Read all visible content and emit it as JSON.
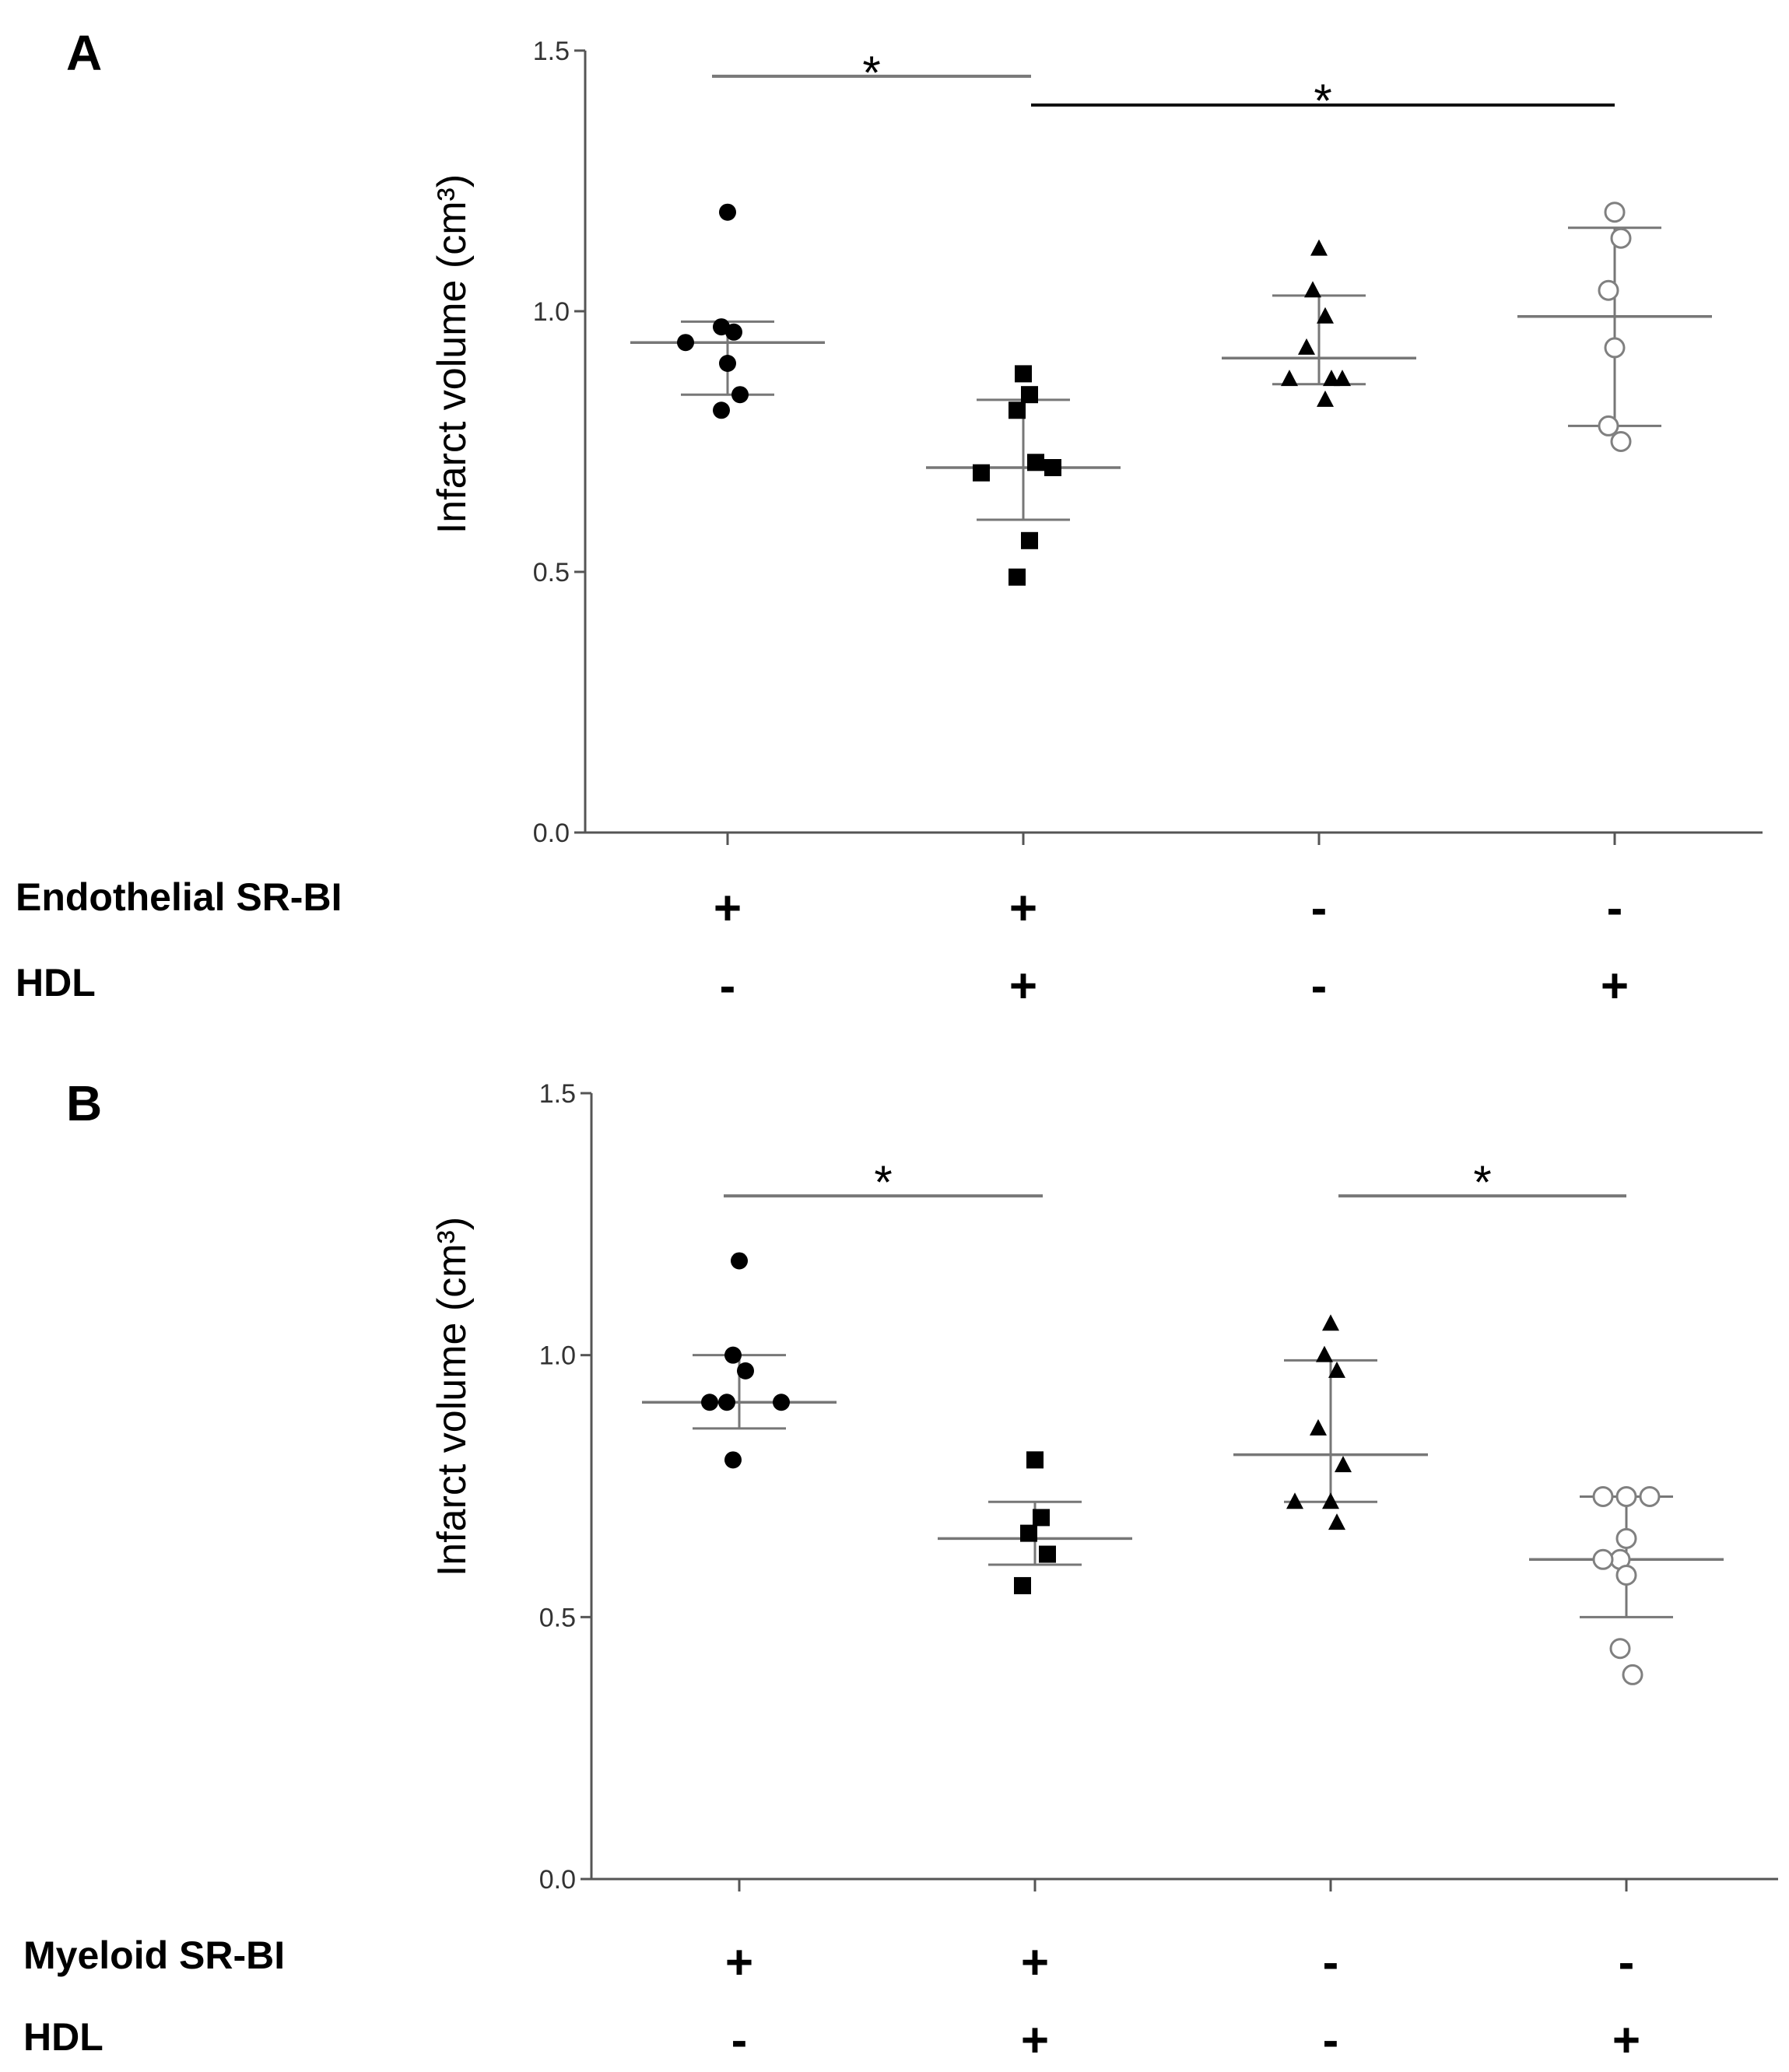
{
  "figure": {
    "panels": [
      {
        "label": "A",
        "row_labels": [
          "Endothelial SR-BI",
          "HDL"
        ],
        "signs": [
          [
            "+",
            "+",
            "-",
            "-"
          ],
          [
            "-",
            "+",
            "-",
            "+"
          ]
        ],
        "significance": [
          {
            "groups": [
              0,
              1
            ],
            "label": "*",
            "color": "#7a7a7a"
          },
          {
            "groups": [
              1,
              3
            ],
            "label": "*",
            "color": "#111111"
          }
        ]
      },
      {
        "label": "B",
        "row_labels": [
          "Myeloid  SR-BI",
          "HDL"
        ],
        "signs": [
          [
            "+",
            "+",
            "-",
            "-"
          ],
          [
            "-",
            "+",
            "-",
            "+"
          ]
        ],
        "significance": [
          {
            "groups": [
              0,
              1
            ],
            "label": "*",
            "color": "#7a7a7a"
          },
          {
            "groups": [
              2,
              3
            ],
            "label": "*",
            "color": "#7a7a7a"
          }
        ]
      }
    ]
  },
  "chart_data": [
    {
      "type": "scatter",
      "title": "A",
      "ylabel": "Infarct volume (cm³)",
      "ylim": [
        0,
        1.5
      ],
      "yticks": [
        "0.0",
        "0.5",
        "1.0",
        "1.5"
      ],
      "grid": false,
      "groups": [
        {
          "marker": "filled-circle",
          "color": "#000000",
          "values": [
            1.19,
            0.97,
            0.96,
            0.94,
            0.9,
            0.84,
            0.81
          ],
          "mean": 0.94,
          "sd_low": 0.84,
          "sd_high": 0.98
        },
        {
          "marker": "filled-square",
          "color": "#000000",
          "values": [
            0.88,
            0.84,
            0.81,
            0.71,
            0.69,
            0.7,
            0.56,
            0.49
          ],
          "mean": 0.7,
          "sd_low": 0.6,
          "sd_high": 0.83
        },
        {
          "marker": "filled-triangle",
          "color": "#000000",
          "values": [
            1.12,
            1.04,
            0.99,
            0.93,
            0.87,
            0.87,
            0.87,
            0.83
          ],
          "mean": 0.91,
          "sd_low": 0.86,
          "sd_high": 1.03
        },
        {
          "marker": "open-circle",
          "color": "#808080",
          "values": [
            1.19,
            1.14,
            1.04,
            0.93,
            0.78,
            0.75
          ],
          "mean": 0.99,
          "sd_low": 0.78,
          "sd_high": 1.16
        }
      ]
    },
    {
      "type": "scatter",
      "title": "B",
      "ylabel": "Infarct volume (cm³)",
      "ylim": [
        0,
        1.5
      ],
      "yticks": [
        "0.0",
        "0.5",
        "1.0",
        "1.5"
      ],
      "grid": false,
      "groups": [
        {
          "marker": "filled-circle",
          "color": "#000000",
          "values": [
            1.18,
            1.0,
            0.97,
            0.91,
            0.91,
            0.91,
            0.8
          ],
          "mean": 0.91,
          "sd_low": 0.86,
          "sd_high": 1.0
        },
        {
          "marker": "filled-square",
          "color": "#000000",
          "values": [
            0.8,
            0.69,
            0.66,
            0.62,
            0.56
          ],
          "mean": 0.65,
          "sd_low": 0.6,
          "sd_high": 0.72
        },
        {
          "marker": "filled-triangle",
          "color": "#000000",
          "values": [
            1.06,
            1.0,
            0.97,
            0.86,
            0.79,
            0.72,
            0.72,
            0.68
          ],
          "mean": 0.81,
          "sd_low": 0.72,
          "sd_high": 0.99
        },
        {
          "marker": "open-circle",
          "color": "#808080",
          "values": [
            0.73,
            0.73,
            0.73,
            0.65,
            0.61,
            0.61,
            0.58,
            0.44,
            0.39
          ],
          "mean": 0.61,
          "sd_low": 0.5,
          "sd_high": 0.73
        }
      ]
    }
  ]
}
